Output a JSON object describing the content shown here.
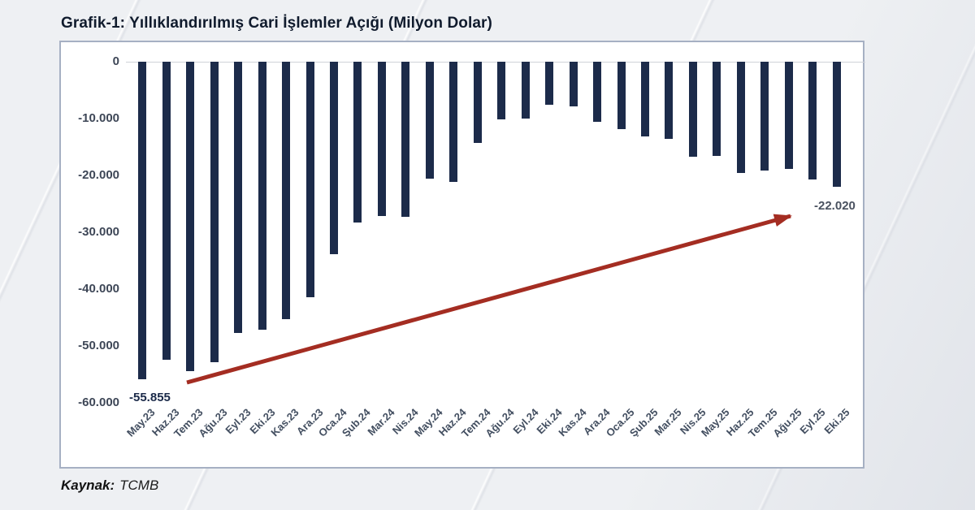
{
  "page": {
    "title": "Grafik-1: Yıllıklandırılmış Cari İşlemler Açığı (Milyon Dolar)",
    "source_label": "Kaynak:",
    "source_value": "TCMB"
  },
  "chart_data": {
    "type": "bar",
    "title": "Grafik-1: Yıllıklandırılmış Cari İşlemler Açığı (Milyon Dolar)",
    "xlabel": "",
    "ylabel": "",
    "ylim": [
      -60000,
      0
    ],
    "grid": false,
    "legend": "none",
    "categories": [
      "May.23",
      "Haz.23",
      "Tem.23",
      "Ağu.23",
      "Eyl.23",
      "Eki.23",
      "Kas.23",
      "Ara.23",
      "Oca.24",
      "Şub.24",
      "Mar.24",
      "Nis.24",
      "May.24",
      "Haz.24",
      "Tem.24",
      "Ağu.24",
      "Eyl.24",
      "Eki.24",
      "Kas.24",
      "Ara.24",
      "Oca.25",
      "Şub.25",
      "Mar.25",
      "Nis.25",
      "May.25",
      "Haz.25",
      "Tem.25",
      "Ağu.25",
      "Eyl.25",
      "Eki.25"
    ],
    "values": [
      -55855,
      -52400,
      -54400,
      -52800,
      -47700,
      -47100,
      -45300,
      -41400,
      -33800,
      -28300,
      -27100,
      -27300,
      -20600,
      -21200,
      -14300,
      -10100,
      -10000,
      -7500,
      -7900,
      -10600,
      -11900,
      -13100,
      -13600,
      -16700,
      -16500,
      -19600,
      -19100,
      -18900,
      -20700,
      -22020
    ],
    "ytick_labels": [
      "0",
      "-10.000",
      "-20.000",
      "-30.000",
      "-40.000",
      "-50.000",
      "-60.000"
    ],
    "yticks": [
      0,
      -10000,
      -20000,
      -30000,
      -40000,
      -50000,
      -60000
    ],
    "annotations": [
      {
        "text": "-55.855",
        "category": "May.23",
        "value": -55855
      },
      {
        "text": "-22.020",
        "category": "Eki.25",
        "value": -22020
      }
    ],
    "trend_arrow": {
      "from_category": "May.23",
      "to_category": "Eki.25"
    },
    "colors": {
      "bar": "#1c2b4a",
      "arrow": "#a42d22",
      "annotation_start": "#1b2a49",
      "annotation_end": "#4a5260",
      "axis_text": "#3e4757",
      "panel_border": "#a6b0c3"
    }
  }
}
